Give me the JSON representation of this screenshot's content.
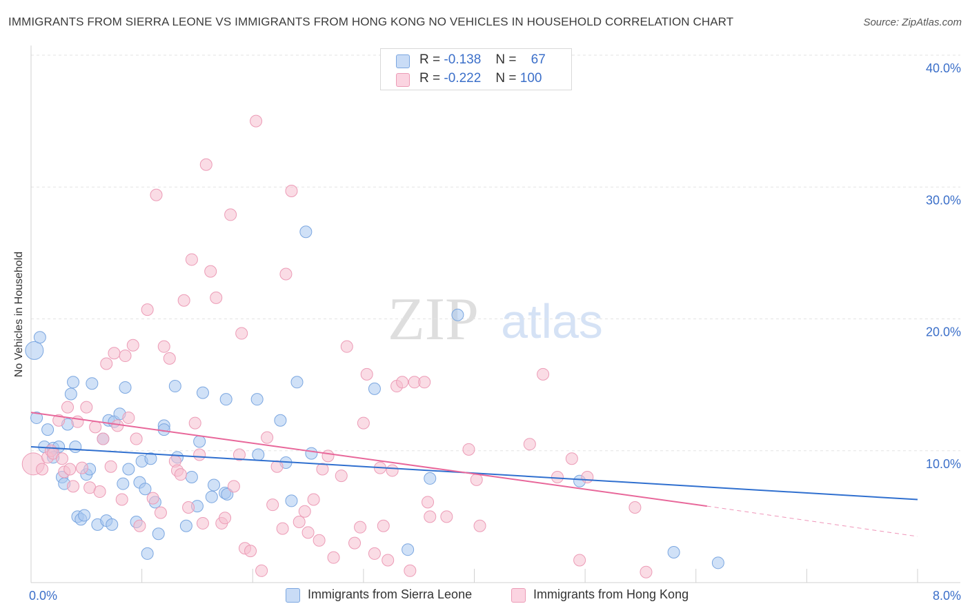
{
  "title": "IMMIGRANTS FROM SIERRA LEONE VS IMMIGRANTS FROM HONG KONG NO VEHICLES IN HOUSEHOLD CORRELATION CHART",
  "source": "Source: ZipAtlas.com",
  "stats": {
    "row1": {
      "r_label": "R =",
      "r_value": "-0.138",
      "n_label": "N =",
      "n_value": "67"
    },
    "row2": {
      "r_label": "R =",
      "r_value": "-0.222",
      "n_label": "N =",
      "n_value": "100"
    }
  },
  "legend": {
    "series1": "Immigrants from Sierra Leone",
    "series2": "Immigrants from Hong Kong"
  },
  "watermark": {
    "zip": "ZIP",
    "atlas": "atlas"
  },
  "colors": {
    "blue_fill": "#a9c8f0",
    "blue_stroke": "#7aa6e0",
    "blue_line": "#2f6fcf",
    "pink_fill": "#f6bfd0",
    "pink_stroke": "#ec9bb6",
    "pink_line": "#e8679a",
    "tick_text": "#3b6fc9",
    "grid": "#e3e3e3"
  },
  "chart_data": {
    "type": "scatter",
    "title": "IMMIGRANTS FROM SIERRA LEONE VS IMMIGRANTS FROM HONG KONG NO VEHICLES IN HOUSEHOLD CORRELATION CHART",
    "xlabel": "",
    "ylabel": "No Vehicles in Household",
    "xlim": [
      0,
      8
    ],
    "ylim": [
      0,
      40
    ],
    "x_tick_labels": [
      "0.0%",
      "8.0%"
    ],
    "y_tick_labels": [
      "10.0%",
      "20.0%",
      "30.0%",
      "40.0%"
    ],
    "y_ticks": [
      10,
      20,
      30,
      40
    ],
    "grid": true,
    "legend_position": "bottom",
    "series": [
      {
        "name": "Immigrants from Sierra Leone",
        "color": "#a9c8f0",
        "trend": {
          "x": [
            0,
            8
          ],
          "y": [
            10.3,
            6.3
          ]
        },
        "points": [
          [
            0.03,
            17.6
          ],
          [
            0.08,
            18.6
          ],
          [
            0.05,
            12.5
          ],
          [
            0.15,
            11.6
          ],
          [
            0.12,
            10.3
          ],
          [
            0.2,
            10.2
          ],
          [
            0.25,
            10.3
          ],
          [
            0.2,
            9.5
          ],
          [
            0.28,
            8.0
          ],
          [
            0.3,
            7.5
          ],
          [
            0.33,
            12.0
          ],
          [
            0.36,
            14.3
          ],
          [
            0.38,
            15.2
          ],
          [
            0.4,
            10.3
          ],
          [
            0.42,
            5.0
          ],
          [
            0.45,
            4.8
          ],
          [
            0.48,
            5.1
          ],
          [
            0.5,
            8.2
          ],
          [
            0.53,
            8.6
          ],
          [
            0.55,
            15.1
          ],
          [
            0.6,
            4.4
          ],
          [
            0.65,
            10.9
          ],
          [
            0.68,
            4.7
          ],
          [
            0.7,
            12.3
          ],
          [
            0.73,
            4.4
          ],
          [
            0.75,
            12.2
          ],
          [
            0.8,
            12.8
          ],
          [
            0.83,
            7.5
          ],
          [
            0.85,
            14.8
          ],
          [
            0.88,
            8.6
          ],
          [
            0.95,
            4.6
          ],
          [
            0.98,
            7.6
          ],
          [
            1.0,
            9.2
          ],
          [
            1.03,
            7.1
          ],
          [
            1.05,
            2.2
          ],
          [
            1.08,
            9.4
          ],
          [
            1.12,
            6.1
          ],
          [
            1.15,
            3.7
          ],
          [
            1.2,
            11.9
          ],
          [
            1.2,
            11.6
          ],
          [
            1.3,
            14.9
          ],
          [
            1.32,
            9.5
          ],
          [
            1.4,
            4.3
          ],
          [
            1.45,
            8.0
          ],
          [
            1.5,
            5.8
          ],
          [
            1.52,
            10.7
          ],
          [
            1.55,
            14.4
          ],
          [
            1.63,
            6.5
          ],
          [
            1.65,
            7.4
          ],
          [
            1.75,
            6.8
          ],
          [
            1.77,
            6.7
          ],
          [
            1.76,
            13.9
          ],
          [
            2.04,
            13.9
          ],
          [
            2.05,
            9.7
          ],
          [
            2.25,
            12.3
          ],
          [
            2.3,
            9.1
          ],
          [
            2.35,
            6.2
          ],
          [
            2.4,
            15.2
          ],
          [
            2.53,
            9.8
          ],
          [
            2.48,
            26.6
          ],
          [
            3.1,
            14.7
          ],
          [
            3.4,
            2.5
          ],
          [
            3.6,
            7.9
          ],
          [
            3.85,
            20.3
          ],
          [
            4.95,
            7.7
          ],
          [
            5.8,
            2.3
          ],
          [
            6.2,
            1.5
          ]
        ]
      },
      {
        "name": "Immigrants from Hong Kong",
        "color": "#f6bfd0",
        "trend": {
          "x": [
            0,
            6.1
          ],
          "y": [
            12.9,
            5.8
          ]
        },
        "trend_dashed": {
          "x": [
            6.1,
            8
          ],
          "y": [
            5.8,
            3.5
          ]
        },
        "points": [
          [
            0.02,
            9.0
          ],
          [
            0.1,
            8.6
          ],
          [
            0.15,
            9.5
          ],
          [
            0.18,
            10.0
          ],
          [
            0.2,
            9.8
          ],
          [
            0.25,
            12.3
          ],
          [
            0.28,
            9.4
          ],
          [
            0.3,
            8.4
          ],
          [
            0.33,
            13.3
          ],
          [
            0.35,
            8.6
          ],
          [
            0.38,
            7.3
          ],
          [
            0.42,
            12.2
          ],
          [
            0.46,
            8.7
          ],
          [
            0.5,
            13.3
          ],
          [
            0.53,
            7.2
          ],
          [
            0.58,
            11.8
          ],
          [
            0.62,
            6.9
          ],
          [
            0.65,
            10.9
          ],
          [
            0.68,
            16.6
          ],
          [
            0.72,
            8.8
          ],
          [
            0.75,
            17.4
          ],
          [
            0.78,
            11.9
          ],
          [
            0.82,
            6.3
          ],
          [
            0.85,
            17.2
          ],
          [
            0.88,
            12.5
          ],
          [
            0.92,
            18.0
          ],
          [
            0.95,
            10.9
          ],
          [
            0.98,
            4.3
          ],
          [
            1.05,
            20.7
          ],
          [
            1.1,
            6.4
          ],
          [
            1.13,
            29.4
          ],
          [
            1.17,
            5.3
          ],
          [
            1.2,
            17.9
          ],
          [
            1.25,
            17.0
          ],
          [
            1.3,
            9.2
          ],
          [
            1.32,
            8.5
          ],
          [
            1.35,
            8.2
          ],
          [
            1.38,
            21.4
          ],
          [
            1.42,
            5.7
          ],
          [
            1.45,
            24.5
          ],
          [
            1.48,
            12.1
          ],
          [
            1.52,
            9.7
          ],
          [
            1.55,
            4.5
          ],
          [
            1.58,
            31.7
          ],
          [
            1.62,
            23.6
          ],
          [
            1.67,
            21.6
          ],
          [
            1.72,
            4.5
          ],
          [
            1.75,
            4.9
          ],
          [
            1.8,
            27.9
          ],
          [
            1.83,
            7.3
          ],
          [
            1.88,
            9.7
          ],
          [
            1.9,
            18.9
          ],
          [
            1.93,
            2.6
          ],
          [
            1.98,
            2.4
          ],
          [
            2.03,
            35.0
          ],
          [
            2.08,
            0.9
          ],
          [
            2.13,
            11.0
          ],
          [
            2.18,
            5.9
          ],
          [
            2.22,
            8.8
          ],
          [
            2.27,
            4.1
          ],
          [
            2.3,
            23.4
          ],
          [
            2.35,
            29.7
          ],
          [
            2.42,
            4.6
          ],
          [
            2.47,
            5.4
          ],
          [
            2.5,
            3.8
          ],
          [
            2.55,
            6.3
          ],
          [
            2.6,
            3.2
          ],
          [
            2.63,
            8.6
          ],
          [
            2.68,
            9.6
          ],
          [
            2.73,
            1.9
          ],
          [
            2.8,
            8.1
          ],
          [
            2.85,
            17.9
          ],
          [
            2.92,
            3.0
          ],
          [
            2.97,
            4.2
          ],
          [
            3.0,
            12.1
          ],
          [
            3.03,
            15.8
          ],
          [
            3.1,
            2.2
          ],
          [
            3.15,
            8.7
          ],
          [
            3.18,
            4.3
          ],
          [
            3.22,
            1.7
          ],
          [
            3.26,
            8.5
          ],
          [
            3.3,
            14.9
          ],
          [
            3.35,
            15.2
          ],
          [
            3.42,
            0.9
          ],
          [
            3.46,
            15.2
          ],
          [
            3.55,
            15.2
          ],
          [
            3.58,
            6.1
          ],
          [
            3.6,
            5.0
          ],
          [
            3.75,
            5.0
          ],
          [
            3.95,
            10.1
          ],
          [
            4.02,
            7.8
          ],
          [
            4.05,
            4.3
          ],
          [
            4.5,
            10.5
          ],
          [
            4.62,
            15.8
          ],
          [
            4.75,
            8.0
          ],
          [
            4.88,
            9.4
          ],
          [
            4.95,
            1.7
          ],
          [
            5.02,
            8.0
          ],
          [
            5.45,
            5.7
          ],
          [
            5.55,
            0.8
          ]
        ]
      }
    ]
  }
}
